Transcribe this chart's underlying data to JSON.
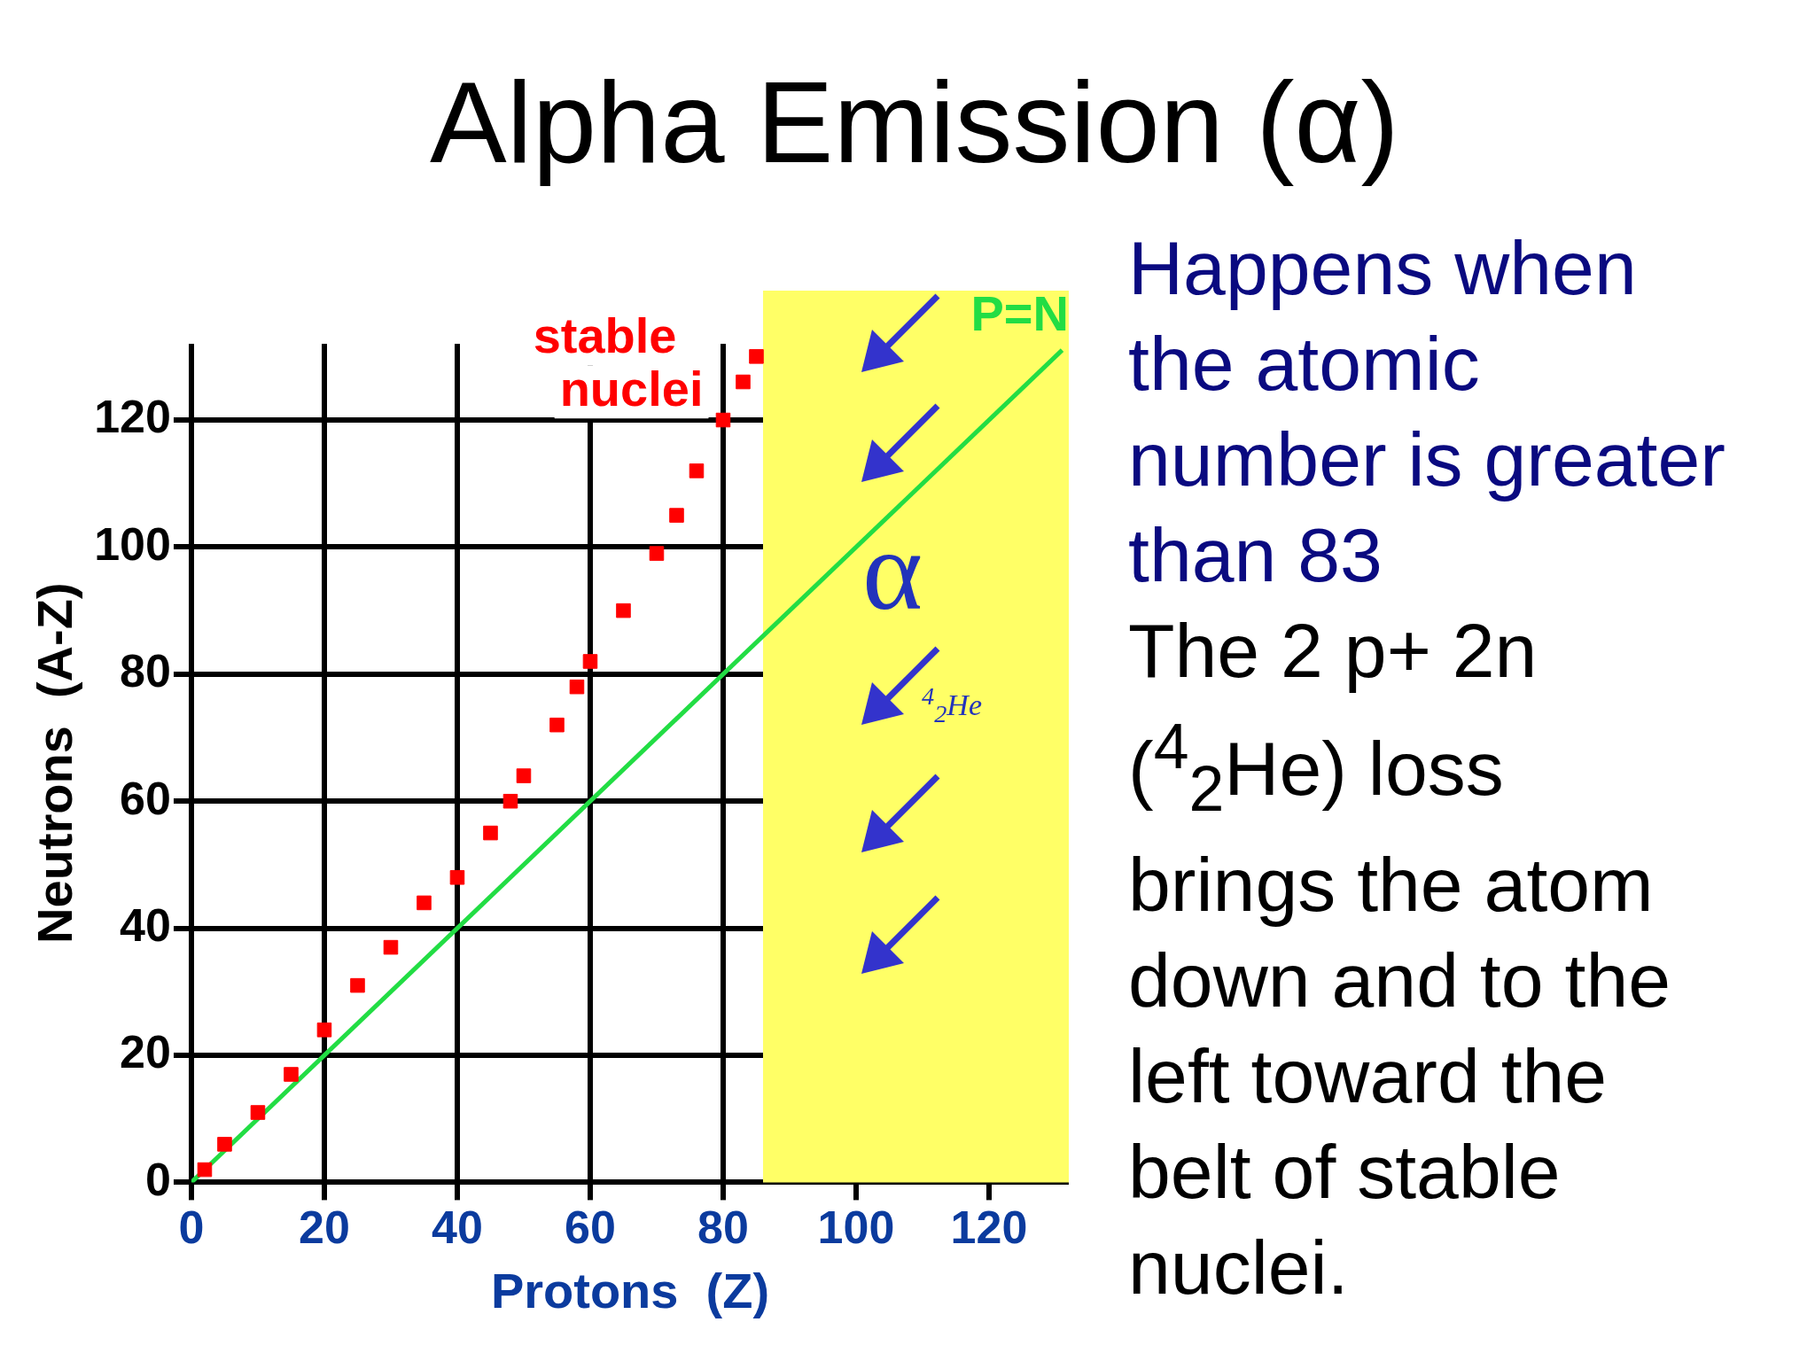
{
  "chart_data": {
    "type": "scatter",
    "title": "Alpha Emission (α)",
    "xlabel": "Protons  (Z)",
    "ylabel": "Neutrons  (A-Z)",
    "xlim": [
      0,
      132
    ],
    "ylim": [
      0,
      132
    ],
    "xticks": [
      0,
      20,
      40,
      60,
      80,
      100,
      120
    ],
    "yticks": [
      0,
      20,
      40,
      60,
      80,
      100,
      120
    ],
    "grid": true,
    "legend": false,
    "series": [
      {
        "name": "stable nuclei",
        "marker": "square",
        "color": "#ff0000",
        "x": [
          2,
          5,
          10,
          15,
          20,
          25,
          30,
          35,
          40,
          45,
          48,
          50,
          55,
          58,
          60,
          65,
          70,
          73,
          76,
          80,
          83,
          85
        ],
        "values": [
          2,
          6,
          11,
          17,
          24,
          31,
          37,
          44,
          48,
          55,
          60,
          64,
          72,
          78,
          82,
          90,
          99,
          105,
          112,
          120,
          126,
          130
        ]
      },
      {
        "name": "P=N",
        "type": "line",
        "color": "#22dd44",
        "x": [
          0,
          131
        ],
        "values": [
          0,
          131
        ]
      }
    ],
    "bands": [
      {
        "axis": "x",
        "from": 86,
        "to": 132,
        "color": "#ffff66"
      }
    ],
    "annotations": [
      "α",
      "$^{4}$$_{2}$He",
      "Happens when the atomic number is greater than 83",
      "The 2 p+ 2n ($^{4}$$_{2}$He) loss brings the atom down and to the left toward the belt of stable nuclei."
    ]
  }
}
